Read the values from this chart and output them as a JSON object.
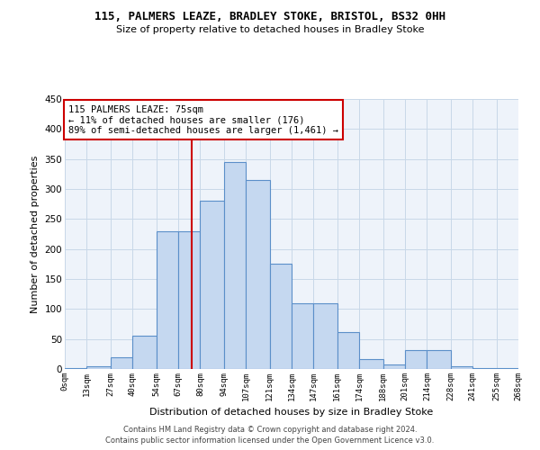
{
  "title1": "115, PALMERS LEAZE, BRADLEY STOKE, BRISTOL, BS32 0HH",
  "title2": "Size of property relative to detached houses in Bradley Stoke",
  "xlabel": "Distribution of detached houses by size in Bradley Stoke",
  "ylabel": "Number of detached properties",
  "footer1": "Contains HM Land Registry data © Crown copyright and database right 2024.",
  "footer2": "Contains public sector information licensed under the Open Government Licence v3.0.",
  "annotation_line1": "115 PALMERS LEAZE: 75sqm",
  "annotation_line2": "← 11% of detached houses are smaller (176)",
  "annotation_line3": "89% of semi-detached houses are larger (1,461) →",
  "property_size": 75,
  "bar_edges": [
    0,
    13,
    27,
    40,
    54,
    67,
    80,
    94,
    107,
    121,
    134,
    147,
    161,
    174,
    188,
    201,
    214,
    228,
    241,
    255,
    268
  ],
  "bar_heights": [
    2,
    5,
    20,
    55,
    230,
    230,
    280,
    345,
    315,
    175,
    110,
    110,
    62,
    17,
    8,
    32,
    32,
    4,
    2,
    2
  ],
  "bar_color": "#c5d8f0",
  "bar_edge_color": "#5b8fc9",
  "vline_color": "#cc0000",
  "annotation_box_color": "#cc0000",
  "grid_color": "#c8d8e8",
  "bg_color": "#eef3fa",
  "ylim": [
    0,
    450
  ],
  "yticks": [
    0,
    50,
    100,
    150,
    200,
    250,
    300,
    350,
    400,
    450
  ]
}
